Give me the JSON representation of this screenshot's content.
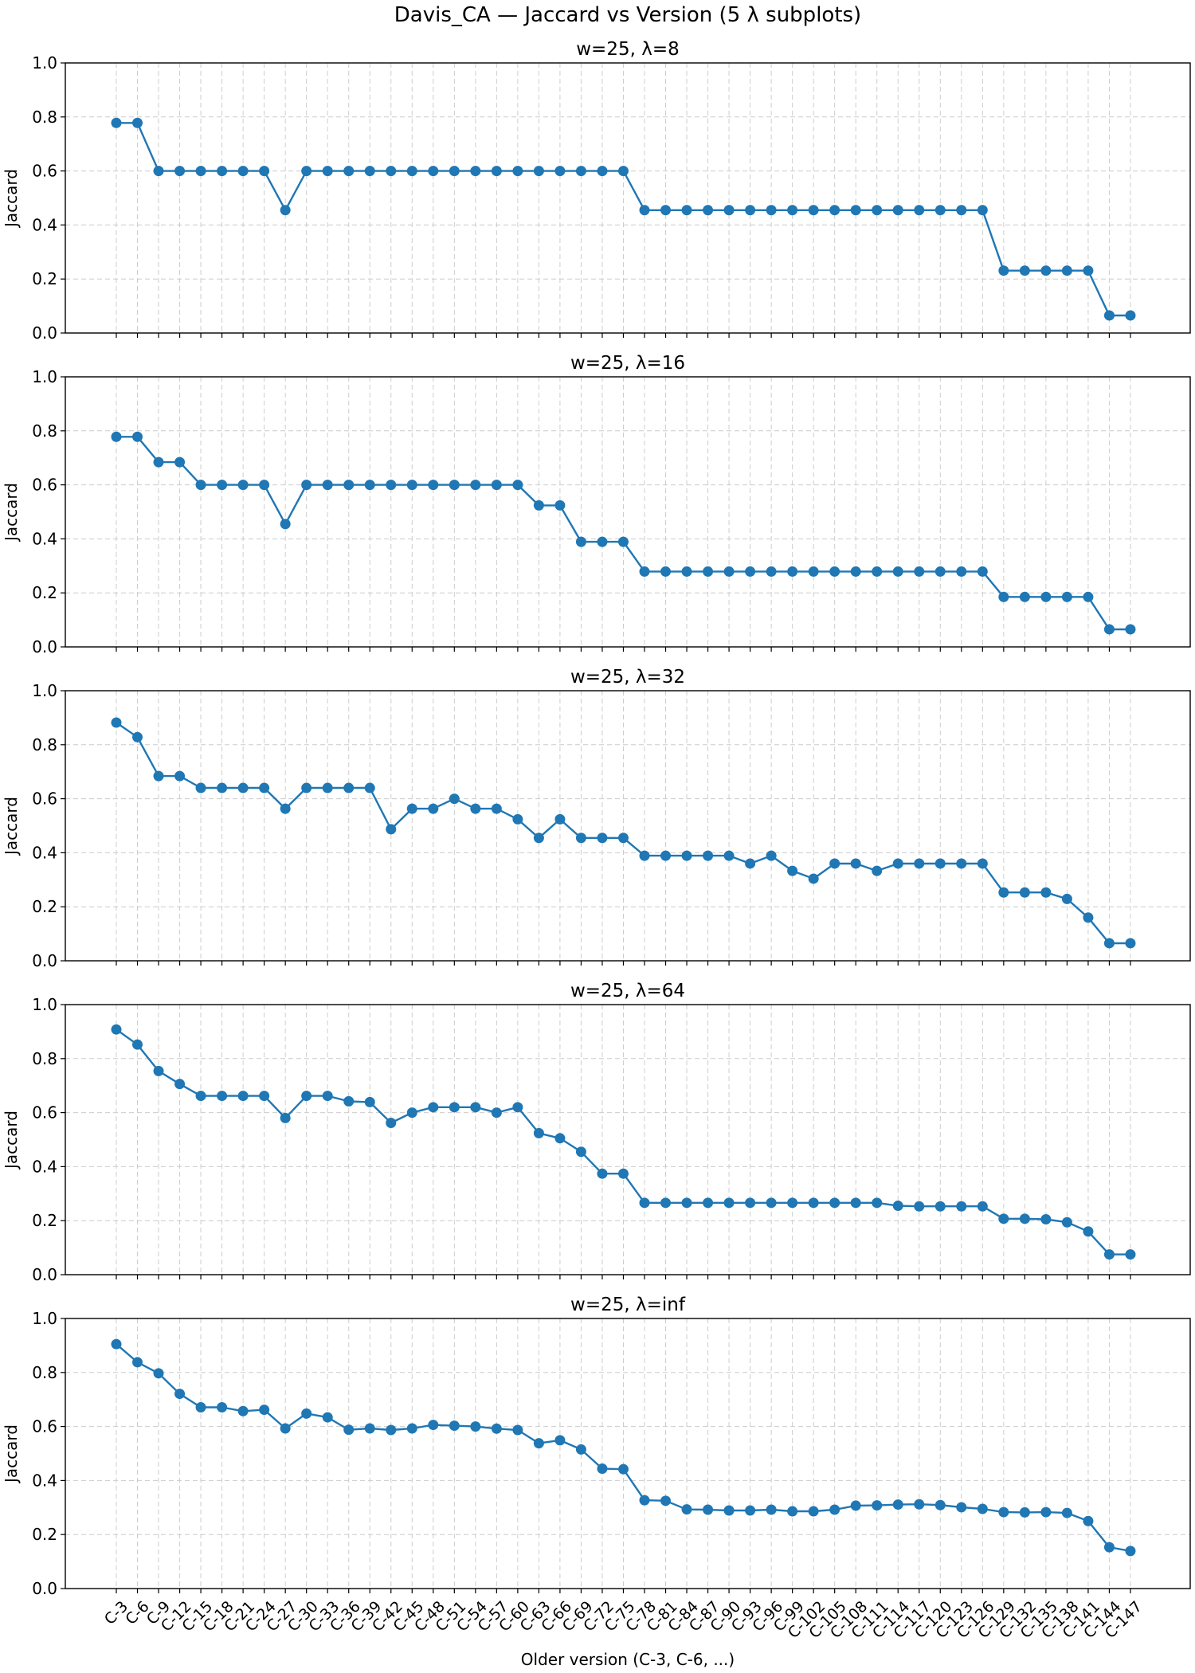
{
  "chart_data": {
    "type": "line",
    "title": "Davis_CA — Jaccard vs Version (5 λ subplots)",
    "xlabel": "Older version (C-3, C-6, ...)",
    "ylabel": "Jaccard",
    "ylim": [
      0,
      1.0
    ],
    "yticks": [
      "0.0",
      "0.2",
      "0.4",
      "0.6",
      "0.8",
      "1.0"
    ],
    "grid": true,
    "line_color": "#1f77b4",
    "categories": [
      "C-3",
      "C-6",
      "C-9",
      "C-12",
      "C-15",
      "C-18",
      "C-21",
      "C-24",
      "C-27",
      "C-30",
      "C-33",
      "C-36",
      "C-39",
      "C-42",
      "C-45",
      "C-48",
      "C-51",
      "C-54",
      "C-57",
      "C-60",
      "C-63",
      "C-66",
      "C-69",
      "C-72",
      "C-75",
      "C-78",
      "C-81",
      "C-84",
      "C-87",
      "C-90",
      "C-93",
      "C-96",
      "C-99",
      "C-102",
      "C-105",
      "C-108",
      "C-111",
      "C-114",
      "C-117",
      "C-120",
      "C-123",
      "C-126",
      "C-129",
      "C-132",
      "C-135",
      "C-138",
      "C-141",
      "C-144",
      "C-147"
    ],
    "subplots": [
      {
        "title": "w=25, λ=8",
        "values": [
          0.778,
          0.778,
          0.6,
          0.6,
          0.6,
          0.6,
          0.6,
          0.6,
          0.455,
          0.6,
          0.6,
          0.6,
          0.6,
          0.6,
          0.6,
          0.6,
          0.6,
          0.6,
          0.6,
          0.6,
          0.6,
          0.6,
          0.6,
          0.6,
          0.6,
          0.455,
          0.455,
          0.455,
          0.455,
          0.455,
          0.455,
          0.455,
          0.455,
          0.455,
          0.455,
          0.455,
          0.455,
          0.455,
          0.455,
          0.455,
          0.455,
          0.455,
          0.231,
          0.231,
          0.231,
          0.231,
          0.231,
          0.065,
          0.065
        ]
      },
      {
        "title": "w=25, λ=16",
        "values": [
          0.778,
          0.778,
          0.684,
          0.684,
          0.6,
          0.6,
          0.6,
          0.6,
          0.455,
          0.6,
          0.6,
          0.6,
          0.6,
          0.6,
          0.6,
          0.6,
          0.6,
          0.6,
          0.6,
          0.6,
          0.524,
          0.524,
          0.389,
          0.389,
          0.389,
          0.279,
          0.279,
          0.279,
          0.279,
          0.279,
          0.279,
          0.279,
          0.279,
          0.279,
          0.279,
          0.279,
          0.279,
          0.279,
          0.279,
          0.279,
          0.279,
          0.279,
          0.185,
          0.185,
          0.185,
          0.185,
          0.185,
          0.065,
          0.065
        ]
      },
      {
        "title": "w=25, λ=32",
        "values": [
          0.882,
          0.828,
          0.684,
          0.684,
          0.64,
          0.64,
          0.64,
          0.64,
          0.563,
          0.64,
          0.64,
          0.64,
          0.64,
          0.487,
          0.563,
          0.563,
          0.6,
          0.563,
          0.563,
          0.524,
          0.455,
          0.524,
          0.455,
          0.455,
          0.455,
          0.389,
          0.389,
          0.389,
          0.389,
          0.389,
          0.36,
          0.389,
          0.333,
          0.304,
          0.36,
          0.36,
          0.333,
          0.36,
          0.36,
          0.36,
          0.36,
          0.36,
          0.253,
          0.253,
          0.253,
          0.229,
          0.16,
          0.065,
          0.065
        ]
      },
      {
        "title": "w=25, λ=64",
        "values": [
          0.908,
          0.852,
          0.754,
          0.706,
          0.662,
          0.662,
          0.662,
          0.662,
          0.58,
          0.662,
          0.662,
          0.642,
          0.639,
          0.562,
          0.6,
          0.62,
          0.62,
          0.62,
          0.6,
          0.62,
          0.524,
          0.505,
          0.455,
          0.374,
          0.374,
          0.266,
          0.266,
          0.266,
          0.266,
          0.266,
          0.266,
          0.266,
          0.266,
          0.266,
          0.266,
          0.266,
          0.266,
          0.255,
          0.253,
          0.253,
          0.253,
          0.253,
          0.207,
          0.207,
          0.205,
          0.194,
          0.16,
          0.075,
          0.075
        ]
      },
      {
        "title": "w=25, λ=inf",
        "values": [
          0.905,
          0.838,
          0.797,
          0.721,
          0.671,
          0.671,
          0.657,
          0.662,
          0.593,
          0.648,
          0.634,
          0.588,
          0.593,
          0.587,
          0.593,
          0.606,
          0.603,
          0.6,
          0.592,
          0.587,
          0.538,
          0.549,
          0.515,
          0.444,
          0.442,
          0.327,
          0.325,
          0.293,
          0.292,
          0.289,
          0.289,
          0.292,
          0.286,
          0.286,
          0.292,
          0.307,
          0.308,
          0.311,
          0.312,
          0.309,
          0.301,
          0.295,
          0.283,
          0.282,
          0.283,
          0.28,
          0.25,
          0.153,
          0.139
        ]
      }
    ]
  }
}
